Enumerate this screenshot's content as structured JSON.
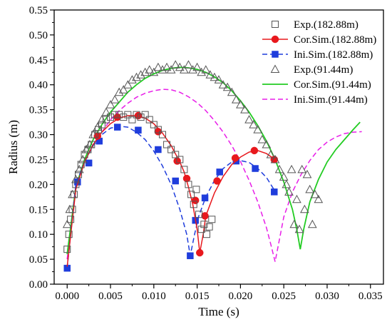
{
  "chart_data": {
    "type": "scatter",
    "xlabel": "Time (s)",
    "ylabel": "Radius (m)",
    "xlim": [
      -0.0015,
      0.0365
    ],
    "ylim": [
      0.0,
      0.55
    ],
    "xticks": [
      0.0,
      0.005,
      0.01,
      0.015,
      0.02,
      0.025,
      0.03,
      0.035
    ],
    "xtick_labels": [
      "0.000",
      "0.005",
      "0.010",
      "0.015",
      "0.020",
      "0.025",
      "0.030",
      "0.035"
    ],
    "yticks": [
      0.0,
      0.05,
      0.1,
      0.15,
      0.2,
      0.25,
      0.3,
      0.35,
      0.4,
      0.45,
      0.5,
      0.55
    ],
    "ytick_labels": [
      "0.00",
      "0.05",
      "0.10",
      "0.15",
      "0.20",
      "0.25",
      "0.30",
      "0.35",
      "0.40",
      "0.45",
      "0.50",
      "0.55"
    ],
    "grid": false,
    "legend_position": "top-right",
    "series": [
      {
        "name": "Exp.(182.88m)",
        "style": "open-square",
        "color": "#555555",
        "x": [
          0.0,
          0.0002,
          0.0004,
          0.0006,
          0.0008,
          0.001,
          0.0013,
          0.0016,
          0.002,
          0.0024,
          0.0028,
          0.0032,
          0.0036,
          0.004,
          0.0045,
          0.005,
          0.0055,
          0.006,
          0.0065,
          0.007,
          0.0075,
          0.008,
          0.0085,
          0.009,
          0.0095,
          0.01,
          0.0105,
          0.011,
          0.0115,
          0.012,
          0.0125,
          0.013,
          0.0135,
          0.014,
          0.0143,
          0.0146,
          0.0149,
          0.0152,
          0.0155,
          0.0158,
          0.0161,
          0.0164,
          0.0167
        ],
        "y": [
          0.07,
          0.1,
          0.13,
          0.15,
          0.18,
          0.2,
          0.22,
          0.24,
          0.26,
          0.27,
          0.28,
          0.3,
          0.31,
          0.32,
          0.33,
          0.335,
          0.34,
          0.34,
          0.335,
          0.34,
          0.33,
          0.34,
          0.335,
          0.34,
          0.33,
          0.32,
          0.31,
          0.3,
          0.28,
          0.27,
          0.26,
          0.25,
          0.23,
          0.2,
          0.18,
          0.16,
          0.19,
          0.14,
          0.11,
          0.12,
          0.1,
          0.115,
          0.13
        ]
      },
      {
        "name": "Cor.Sim.(182.88m)",
        "style": "line-filled-circle",
        "color": "#e8181d",
        "x": [
          0.0,
          0.001,
          0.002,
          0.003,
          0.004,
          0.005,
          0.006,
          0.007,
          0.008,
          0.009,
          0.01,
          0.011,
          0.012,
          0.013,
          0.0135,
          0.014,
          0.0145,
          0.015,
          0.0153,
          0.0157,
          0.016,
          0.0165,
          0.017,
          0.018,
          0.019,
          0.02,
          0.021,
          0.022,
          0.023,
          0.024
        ],
        "y": [
          0.035,
          0.19,
          0.245,
          0.28,
          0.305,
          0.322,
          0.333,
          0.338,
          0.338,
          0.333,
          0.322,
          0.303,
          0.278,
          0.245,
          0.225,
          0.195,
          0.16,
          0.11,
          0.063,
          0.1,
          0.137,
          0.16,
          0.183,
          0.216,
          0.24,
          0.255,
          0.265,
          0.268,
          0.262,
          0.25
        ],
        "markers_x": [
          0.0035,
          0.0058,
          0.0082,
          0.0105,
          0.0127,
          0.0138,
          0.0148,
          0.0153,
          0.0159,
          0.0173,
          0.0194,
          0.0216,
          0.0239
        ],
        "markers_y": [
          0.297,
          0.335,
          0.338,
          0.306,
          0.247,
          0.212,
          0.168,
          0.063,
          0.137,
          0.207,
          0.253,
          0.268,
          0.25
        ]
      },
      {
        "name": "Ini.Sim.(182.88m)",
        "style": "dashed-filled-square",
        "color": "#1f3ddc",
        "x": [
          0.0,
          0.001,
          0.002,
          0.003,
          0.004,
          0.005,
          0.006,
          0.007,
          0.008,
          0.009,
          0.01,
          0.011,
          0.012,
          0.013,
          0.0138,
          0.0142,
          0.0147,
          0.0152,
          0.016,
          0.017,
          0.018,
          0.019,
          0.02,
          0.021,
          0.022,
          0.023,
          0.024
        ],
        "y": [
          0.032,
          0.2,
          0.245,
          0.278,
          0.3,
          0.313,
          0.317,
          0.315,
          0.305,
          0.29,
          0.267,
          0.237,
          0.2,
          0.15,
          0.1,
          0.057,
          0.1,
          0.137,
          0.175,
          0.208,
          0.232,
          0.245,
          0.248,
          0.244,
          0.232,
          0.214,
          0.186
        ],
        "markers_x": [
          0.0,
          0.0012,
          0.0025,
          0.0037,
          0.0058,
          0.0082,
          0.0105,
          0.0125,
          0.0142,
          0.0148,
          0.0159,
          0.0176,
          0.0195,
          0.0217,
          0.0239
        ],
        "markers_y": [
          0.032,
          0.205,
          0.243,
          0.287,
          0.315,
          0.309,
          0.27,
          0.207,
          0.057,
          0.128,
          0.173,
          0.225,
          0.247,
          0.232,
          0.185
        ]
      },
      {
        "name": "Exp.(91.44m)",
        "style": "open-triangle",
        "color": "#555555",
        "x": [
          0.0,
          0.0003,
          0.0006,
          0.001,
          0.0014,
          0.0018,
          0.0022,
          0.0026,
          0.003,
          0.0035,
          0.004,
          0.0045,
          0.005,
          0.0055,
          0.006,
          0.0065,
          0.007,
          0.0075,
          0.008,
          0.0085,
          0.009,
          0.0095,
          0.01,
          0.0105,
          0.011,
          0.0115,
          0.012,
          0.0125,
          0.013,
          0.0135,
          0.014,
          0.0145,
          0.015,
          0.0155,
          0.016,
          0.0165,
          0.017,
          0.0175,
          0.018,
          0.0185,
          0.019,
          0.0195,
          0.02,
          0.0205,
          0.021,
          0.0215,
          0.022,
          0.0225,
          0.023,
          0.0235,
          0.024,
          0.0245,
          0.025,
          0.0253,
          0.0256,
          0.0259,
          0.0262,
          0.0265,
          0.0268,
          0.0271,
          0.0274,
          0.0277,
          0.028,
          0.0283,
          0.0286,
          0.029
        ],
        "y": [
          0.12,
          0.15,
          0.18,
          0.21,
          0.23,
          0.25,
          0.27,
          0.28,
          0.3,
          0.315,
          0.33,
          0.345,
          0.36,
          0.37,
          0.385,
          0.39,
          0.4,
          0.41,
          0.415,
          0.42,
          0.425,
          0.43,
          0.425,
          0.435,
          0.43,
          0.435,
          0.43,
          0.44,
          0.435,
          0.43,
          0.44,
          0.43,
          0.435,
          0.425,
          0.43,
          0.42,
          0.415,
          0.41,
          0.4,
          0.395,
          0.385,
          0.37,
          0.36,
          0.35,
          0.33,
          0.32,
          0.31,
          0.29,
          0.28,
          0.26,
          0.25,
          0.23,
          0.215,
          0.2,
          0.185,
          0.23,
          0.12,
          0.17,
          0.11,
          0.23,
          0.15,
          0.22,
          0.19,
          0.12,
          0.18,
          0.17
        ]
      },
      {
        "name": "Cor.Sim.(91.44m)",
        "style": "solid-line",
        "color": "#22cc22",
        "x": [
          0.0,
          0.001,
          0.002,
          0.003,
          0.004,
          0.005,
          0.006,
          0.007,
          0.008,
          0.009,
          0.01,
          0.011,
          0.012,
          0.013,
          0.014,
          0.015,
          0.016,
          0.017,
          0.018,
          0.019,
          0.02,
          0.021,
          0.022,
          0.023,
          0.024,
          0.025,
          0.026,
          0.0265,
          0.0269,
          0.0273,
          0.028,
          0.029,
          0.03,
          0.031,
          0.032,
          0.033,
          0.0338
        ],
        "y": [
          0.06,
          0.195,
          0.25,
          0.29,
          0.32,
          0.345,
          0.365,
          0.385,
          0.4,
          0.413,
          0.422,
          0.429,
          0.433,
          0.435,
          0.434,
          0.431,
          0.425,
          0.416,
          0.404,
          0.388,
          0.368,
          0.345,
          0.318,
          0.287,
          0.25,
          0.205,
          0.15,
          0.11,
          0.07,
          0.11,
          0.165,
          0.21,
          0.245,
          0.27,
          0.29,
          0.31,
          0.325
        ]
      },
      {
        "name": "Ini.Sim.(91.44m)",
        "style": "dashed-line",
        "color": "#e81ee8",
        "x": [
          0.0,
          0.001,
          0.002,
          0.003,
          0.004,
          0.005,
          0.006,
          0.007,
          0.008,
          0.009,
          0.01,
          0.011,
          0.012,
          0.013,
          0.014,
          0.015,
          0.016,
          0.017,
          0.018,
          0.019,
          0.02,
          0.021,
          0.022,
          0.023,
          0.0235,
          0.024,
          0.0245,
          0.025,
          0.026,
          0.027,
          0.028,
          0.029,
          0.03,
          0.031,
          0.032,
          0.033,
          0.034
        ],
        "y": [
          0.05,
          0.2,
          0.245,
          0.28,
          0.305,
          0.33,
          0.348,
          0.363,
          0.375,
          0.383,
          0.388,
          0.391,
          0.39,
          0.385,
          0.376,
          0.364,
          0.348,
          0.328,
          0.305,
          0.278,
          0.246,
          0.208,
          0.165,
          0.113,
          0.08,
          0.045,
          0.09,
          0.135,
          0.185,
          0.22,
          0.248,
          0.27,
          0.285,
          0.295,
          0.302,
          0.305,
          0.306
        ]
      }
    ]
  }
}
